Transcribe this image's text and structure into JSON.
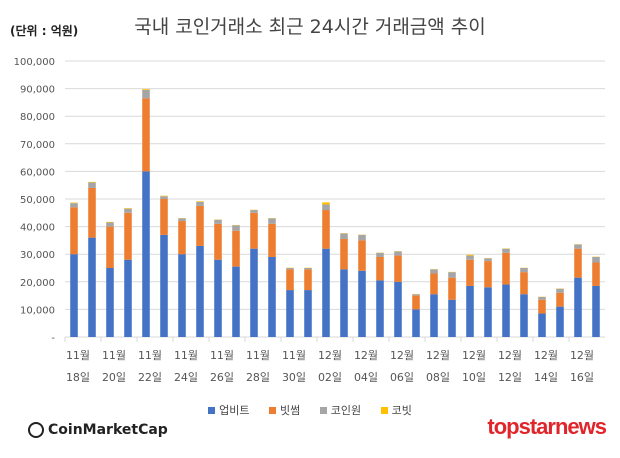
{
  "chart_data": {
    "type": "bar",
    "stacked": true,
    "title": "국내 코인거래소 최근 24시간 거래금액 추이",
    "unit_label": "(단위 : 억원)",
    "ylim": [
      0,
      100000
    ],
    "yticks": [
      "-",
      "10,000",
      "20,000",
      "30,000",
      "40,000",
      "50,000",
      "60,000",
      "70,000",
      "80,000",
      "90,000",
      "100,000"
    ],
    "grid": true,
    "legend_position": "bottom",
    "categories": [
      "11/18",
      "11/19",
      "11/20",
      "11/21",
      "11/22",
      "11/23",
      "11/24",
      "11/25",
      "11/26",
      "11/27",
      "11/28",
      "11/29",
      "11/30",
      "12/01",
      "12/02",
      "12/03",
      "12/04",
      "12/05",
      "12/06",
      "12/07",
      "12/08",
      "12/09",
      "12/10",
      "12/11",
      "12/12",
      "12/13",
      "12/14",
      "12/15",
      "12/16",
      "12/17"
    ],
    "xtick_labels": [
      [
        "11월",
        "18일"
      ],
      [
        "11월",
        "20일"
      ],
      [
        "11월",
        "22일"
      ],
      [
        "11월",
        "24일"
      ],
      [
        "11월",
        "26일"
      ],
      [
        "11월",
        "28일"
      ],
      [
        "11월",
        "30일"
      ],
      [
        "12월",
        "02일"
      ],
      [
        "12월",
        "04일"
      ],
      [
        "12월",
        "06일"
      ],
      [
        "12월",
        "08일"
      ],
      [
        "12월",
        "10일"
      ],
      [
        "12월",
        "12일"
      ],
      [
        "12월",
        "14일"
      ],
      [
        "12월",
        "16일"
      ]
    ],
    "series": [
      {
        "name": "업비트",
        "color": "#4472C4",
        "values": [
          30000,
          36000,
          25000,
          28000,
          60000,
          37000,
          30000,
          33000,
          28000,
          25500,
          32000,
          29000,
          17000,
          17000,
          32000,
          24500,
          24000,
          20500,
          20000,
          10000,
          15500,
          13500,
          18500,
          18000,
          19000,
          15500,
          8500,
          11000,
          21500,
          18500
        ]
      },
      {
        "name": "빗썸",
        "color": "#ED7D31",
        "values": [
          17000,
          18000,
          15000,
          17000,
          26500,
          13000,
          12000,
          14500,
          13000,
          13000,
          13000,
          12000,
          7500,
          7500,
          14000,
          11000,
          11000,
          8500,
          9500,
          5000,
          7500,
          8000,
          9500,
          9500,
          11500,
          8000,
          5000,
          5000,
          10500,
          8500
        ]
      },
      {
        "name": "코인원",
        "color": "#A5A5A5",
        "values": [
          1500,
          2000,
          1500,
          1500,
          3000,
          1000,
          1000,
          1500,
          1500,
          2000,
          1000,
          2000,
          500,
          500,
          2000,
          2000,
          2000,
          1500,
          1500,
          500,
          1500,
          2000,
          1500,
          1000,
          1500,
          1500,
          1000,
          1500,
          1500,
          2000
        ]
      },
      {
        "name": "코빗",
        "color": "#FFC000",
        "values": [
          200,
          200,
          200,
          200,
          300,
          200,
          100,
          200,
          100,
          100,
          100,
          100,
          100,
          100,
          800,
          100,
          100,
          100,
          100,
          100,
          100,
          100,
          300,
          100,
          100,
          100,
          100,
          100,
          100,
          100
        ]
      }
    ]
  },
  "branding": {
    "left": "CoinMarketCap",
    "right": "topstarnews"
  }
}
